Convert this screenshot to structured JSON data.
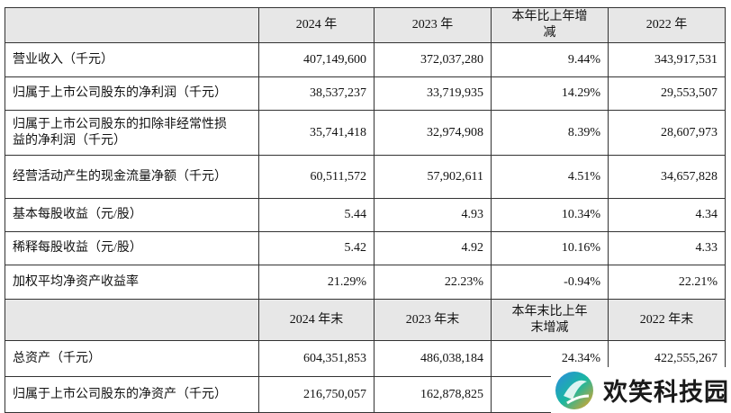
{
  "table": {
    "header": [
      "2024 年",
      "2023 年",
      "本年比上年增减",
      "2022 年"
    ],
    "rows": [
      [
        "营业收入（千元）",
        "407,149,600",
        "372,037,280",
        "9.44%",
        "343,917,531"
      ],
      [
        "归属于上市公司股东的净利润（千元）",
        "38,537,237",
        "33,719,935",
        "14.29%",
        "29,553,507"
      ],
      [
        "归属于上市公司股东的扣除非经常性损益的净利润（千元）",
        "35,741,418",
        "32,974,908",
        "8.39%",
        "28,607,973"
      ],
      [
        "经营活动产生的现金流量净额（千元）",
        "60,511,572",
        "57,902,611",
        "4.51%",
        "34,657,828"
      ],
      [
        "基本每股收益（元/股）",
        "5.44",
        "4.93",
        "10.34%",
        "4.34"
      ],
      [
        "稀释每股收益（元/股）",
        "5.42",
        "4.92",
        "10.16%",
        "4.33"
      ],
      [
        "加权平均净资产收益率",
        "21.29%",
        "22.23%",
        "-0.94%",
        "22.21%"
      ]
    ],
    "header2": [
      "2024 年末",
      "2023 年末",
      "本年末比上年末增减",
      "2022 年末"
    ],
    "rows2": [
      [
        "总资产（千元）",
        "604,351,853",
        "486,038,184",
        "24.34%",
        "422,555,267"
      ],
      [
        "归属于上市公司股东的净资产（千元）",
        "216,750,057",
        "162,878,825"
      ]
    ]
  },
  "watermark": "欢笑科技园"
}
